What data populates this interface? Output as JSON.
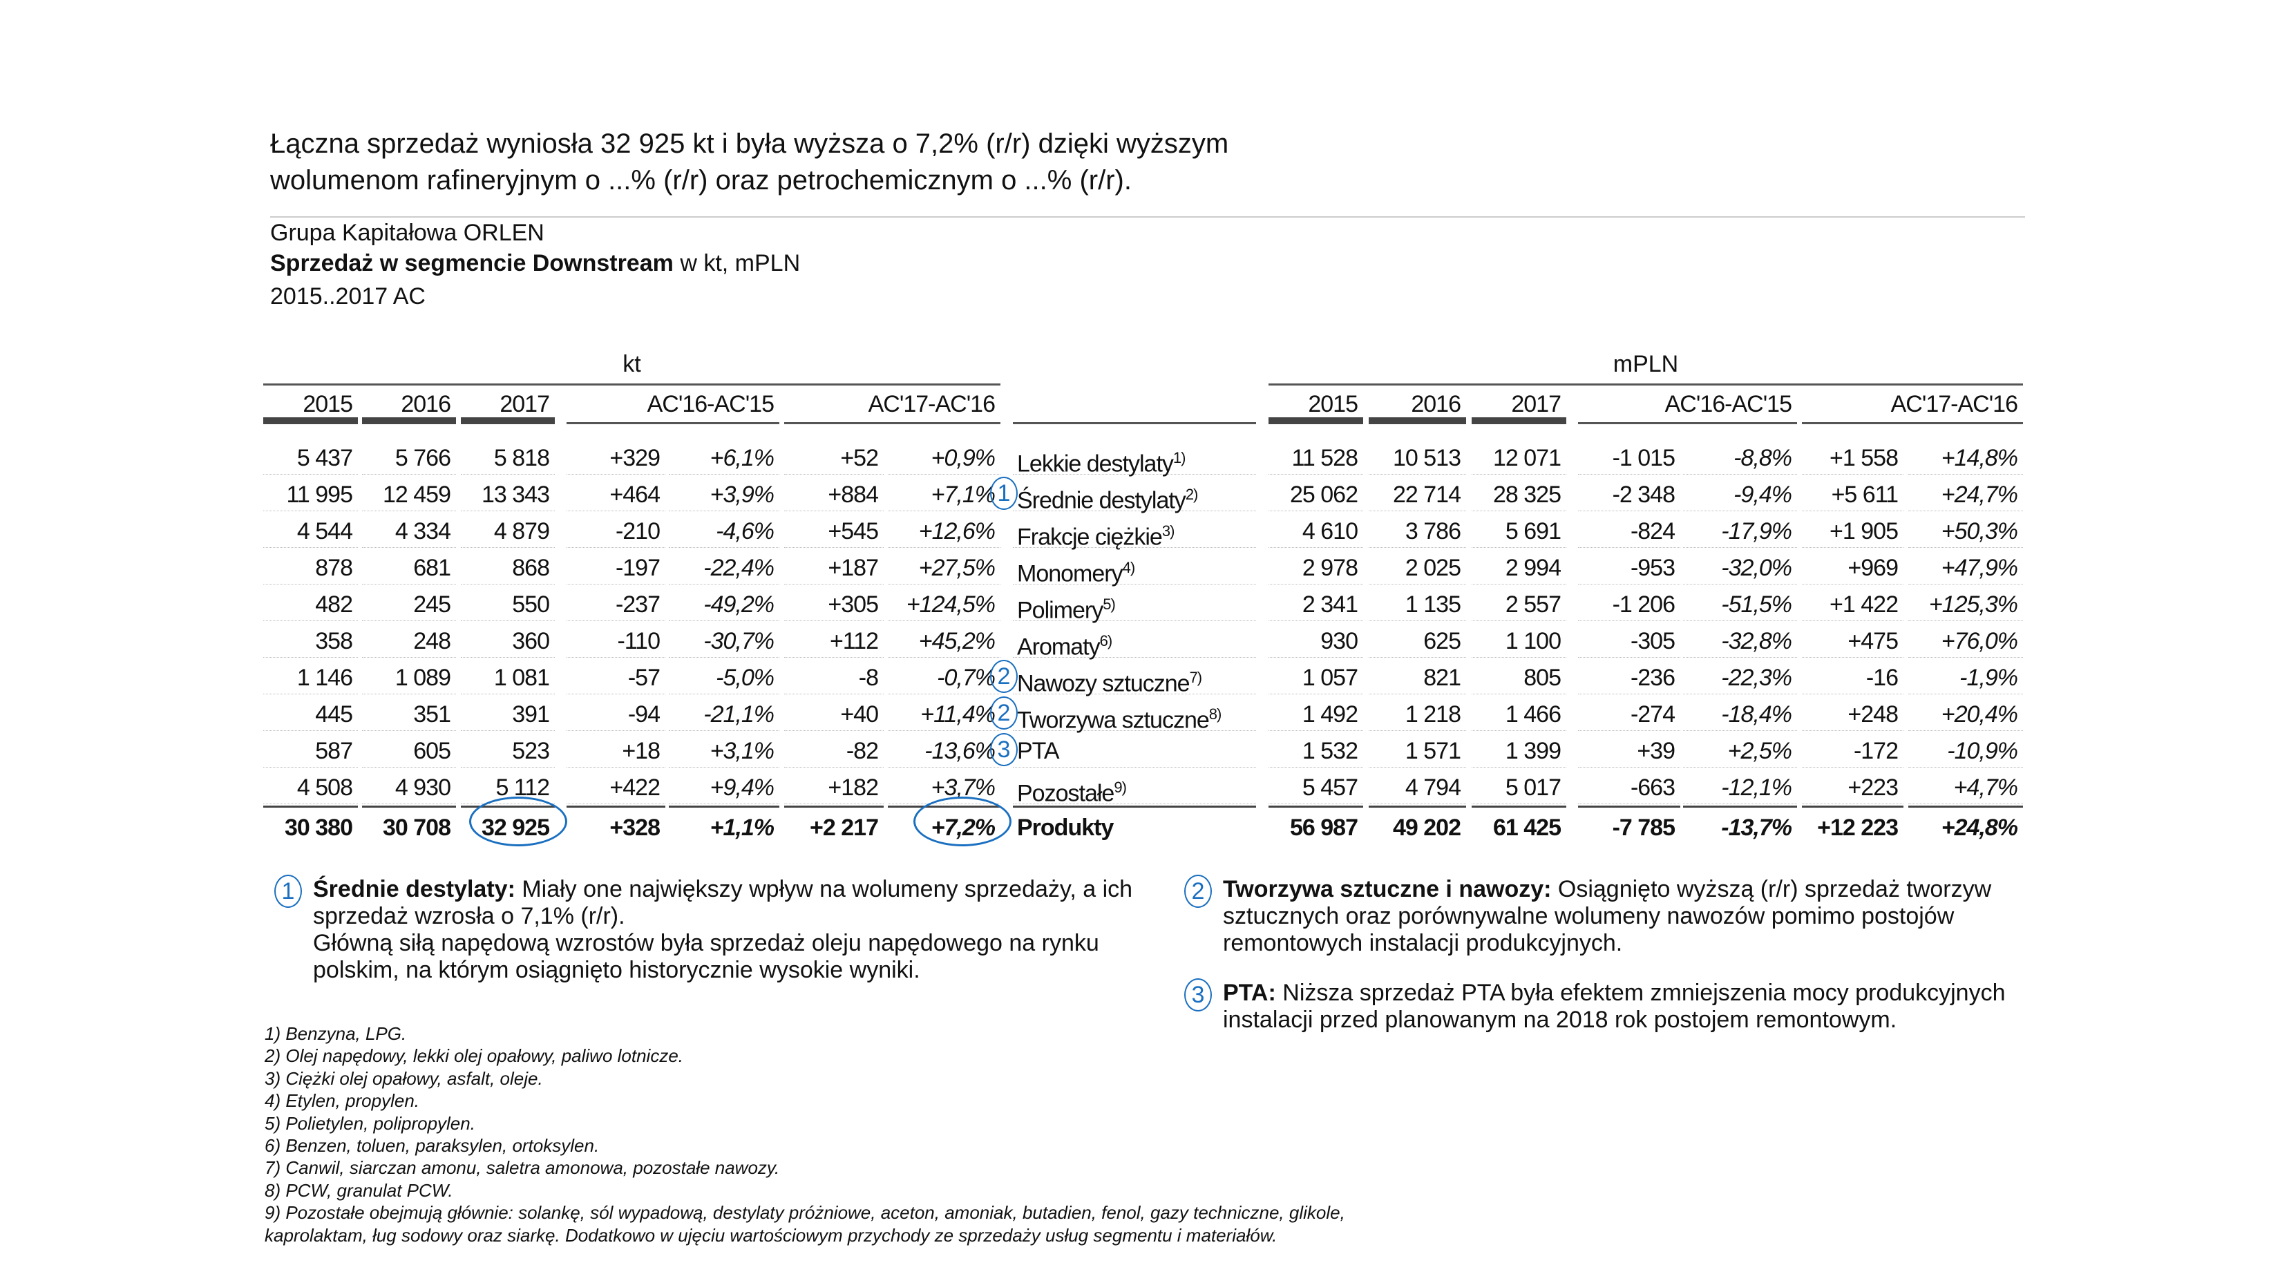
{
  "headline": {
    "line1": "Łączna sprzedaż wyniosła 32 925 kt i była wyższa o 7,2% (r/r) dzięki wyższym",
    "line2": "wolumenom rafineryjnym o ...% (r/r) oraz petrochemicznym o ...% (r/r)."
  },
  "subtitle": {
    "company": "Grupa Kapitałowa ORLEN",
    "title_bold": "Sprzedaż w segmencie Downstream",
    "title_rest": " w kt, mPLN",
    "period": "2015..2017 AC"
  },
  "table": {
    "unit_left": "kt",
    "unit_right": "mPLN",
    "headers": [
      "2015",
      "2016",
      "2017",
      "AC'16-AC'15",
      "AC'17-AC'16"
    ],
    "rows": [
      {
        "label": "Lekkie destylaty",
        "sup": "1)",
        "kt": [
          "5 437",
          "5 766",
          "5 818",
          "+329",
          "+6,1%",
          "+52",
          "+0,9%"
        ],
        "pln": [
          "11 528",
          "10 513",
          "12 071",
          "-1 015",
          "-8,8%",
          "+1 558",
          "+14,8%"
        ]
      },
      {
        "label": "Średnie destylaty",
        "sup": "2)",
        "marker": "1",
        "kt": [
          "11 995",
          "12 459",
          "13 343",
          "+464",
          "+3,9%",
          "+884",
          "+7,1%"
        ],
        "pln": [
          "25 062",
          "22 714",
          "28 325",
          "-2 348",
          "-9,4%",
          "+5 611",
          "+24,7%"
        ]
      },
      {
        "label": "Frakcje ciężkie",
        "sup": "3)",
        "kt": [
          "4 544",
          "4 334",
          "4 879",
          "-210",
          "-4,6%",
          "+545",
          "+12,6%"
        ],
        "pln": [
          "4 610",
          "3 786",
          "5 691",
          "-824",
          "-17,9%",
          "+1 905",
          "+50,3%"
        ]
      },
      {
        "label": "Monomery",
        "sup": "4)",
        "kt": [
          "878",
          "681",
          "868",
          "-197",
          "-22,4%",
          "+187",
          "+27,5%"
        ],
        "pln": [
          "2 978",
          "2 025",
          "2 994",
          "-953",
          "-32,0%",
          "+969",
          "+47,9%"
        ]
      },
      {
        "label": "Polimery",
        "sup": "5)",
        "kt": [
          "482",
          "245",
          "550",
          "-237",
          "-49,2%",
          "+305",
          "+124,5%"
        ],
        "pln": [
          "2 341",
          "1 135",
          "2 557",
          "-1 206",
          "-51,5%",
          "+1 422",
          "+125,3%"
        ]
      },
      {
        "label": "Aromaty",
        "sup": "6)",
        "kt": [
          "358",
          "248",
          "360",
          "-110",
          "-30,7%",
          "+112",
          "+45,2%"
        ],
        "pln": [
          "930",
          "625",
          "1 100",
          "-305",
          "-32,8%",
          "+475",
          "+76,0%"
        ]
      },
      {
        "label": "Nawozy sztuczne",
        "sup": "7)",
        "marker": "2",
        "kt": [
          "1 146",
          "1 089",
          "1 081",
          "-57",
          "-5,0%",
          "-8",
          "-0,7%"
        ],
        "pln": [
          "1 057",
          "821",
          "805",
          "-236",
          "-22,3%",
          "-16",
          "-1,9%"
        ]
      },
      {
        "label": "Tworzywa sztuczne",
        "sup": "8)",
        "marker": "2",
        "kt": [
          "445",
          "351",
          "391",
          "-94",
          "-21,1%",
          "+40",
          "+11,4%"
        ],
        "pln": [
          "1 492",
          "1 218",
          "1 466",
          "-274",
          "-18,4%",
          "+248",
          "+20,4%"
        ]
      },
      {
        "label": "PTA",
        "sup": "",
        "marker": "3",
        "kt": [
          "587",
          "605",
          "523",
          "+18",
          "+3,1%",
          "-82",
          "-13,6%"
        ],
        "pln": [
          "1 532",
          "1 571",
          "1 399",
          "+39",
          "+2,5%",
          "-172",
          "-10,9%"
        ]
      },
      {
        "label": "Pozostałe",
        "sup": "9)",
        "kt": [
          "4 508",
          "4 930",
          "5 112",
          "+422",
          "+9,4%",
          "+182",
          "+3,7%"
        ],
        "pln": [
          "5 457",
          "4 794",
          "5 017",
          "-663",
          "-12,1%",
          "+223",
          "+4,7%"
        ]
      }
    ],
    "total": {
      "label": "Produkty",
      "kt": [
        "30 380",
        "30 708",
        "32 925",
        "+328",
        "+1,1%",
        "+2 217",
        "+7,2%"
      ],
      "pln": [
        "56 987",
        "49 202",
        "61 425",
        "-7 785",
        "-13,7%",
        "+12 223",
        "+24,8%"
      ]
    }
  },
  "notes": [
    {
      "num": "1",
      "title": "Średnie destylaty:",
      "text": " Miały one największy wpływ na wolumeny sprzedaży, a ich sprzedaż wzrosła o 7,1% (r/r).",
      "text2": "Główną siłą napędową wzrostów była sprzedaż oleju napędowego na rynku polskim, na którym osiągnięto historycznie wysokie wyniki."
    },
    {
      "num": "2",
      "title": "Tworzywa sztuczne i nawozy:",
      "text": " Osiągnięto wyższą (r/r) sprzedaż tworzyw sztucznych oraz porównywalne wolumeny nawozów pomimo postojów remontowych instalacji produkcyjnych."
    },
    {
      "num": "3",
      "title": "PTA:",
      "text": " Niższa sprzedaż PTA była efektem zmniejszenia mocy produkcyjnych instalacji przed planowanym na 2018 rok postojem remontowym."
    }
  ],
  "footnotes": [
    "1) Benzyna, LPG.",
    "2) Olej napędowy, lekki olej opałowy, paliwo lotnicze.",
    "3) Ciężki olej opałowy, asfalt, oleje.",
    "4) Etylen, propylen.",
    "5) Polietylen, polipropylen.",
    "6) Benzen, toluen, paraksylen, ortoksylen.",
    "7) Canwil, siarczan amonu, saletra amonowa, pozostałe nawozy.",
    "8) PCW, granulat PCW.",
    "9) Pozostałe obejmują głównie: solankę, sól wypadową, destylaty próżniowe, aceton, amoniak, butadien, fenol, gazy techniczne, glikole, kaprolaktam, ług sodowy oraz siarkę. Dodatkowo w ujęciu wartościowym przychody ze sprzedaży usług segmentu i materiałów."
  ],
  "colors": {
    "accent": "#1a6fc0",
    "rule": "#444444"
  }
}
